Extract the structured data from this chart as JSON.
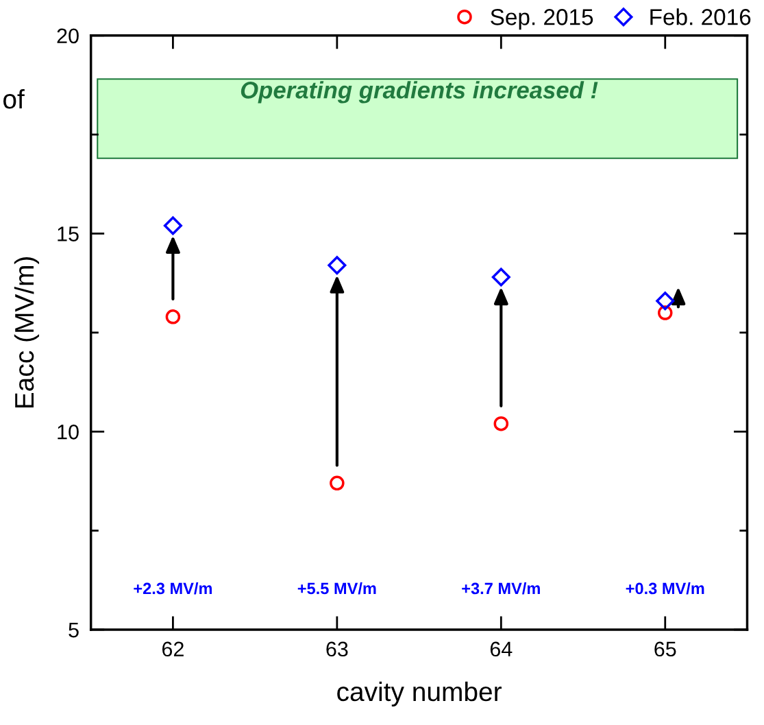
{
  "chart_data": {
    "type": "scatter",
    "xlabel": "cavity number",
    "ylabel": "Eacc (MV/m)",
    "x": [
      62,
      63,
      64,
      65
    ],
    "series": [
      {
        "name": "Sep. 2015",
        "color": "#ff0000",
        "marker": "circle",
        "values": [
          12.9,
          8.7,
          10.2,
          13.0
        ]
      },
      {
        "name": "Feb. 2016",
        "color": "#0000ff",
        "marker": "diamond",
        "values": [
          15.2,
          14.2,
          13.9,
          13.3
        ]
      }
    ],
    "xlim": [
      61.5,
      65.5
    ],
    "xticks": [
      62,
      63,
      64,
      65
    ],
    "ylim": [
      5,
      20
    ],
    "yticks": [
      5,
      10,
      15,
      20
    ],
    "bands": [
      {
        "axis": "y",
        "from": 16.9,
        "to": 18.9,
        "label": "Operating gradients increased !",
        "color": "#ccffcc"
      }
    ],
    "annotations": [
      "+2.3 MV/m",
      "+5.5 MV/m",
      "+3.7 MV/m",
      "+0.3 MV/m",
      "of"
    ],
    "legend": "top right",
    "grid": false
  }
}
